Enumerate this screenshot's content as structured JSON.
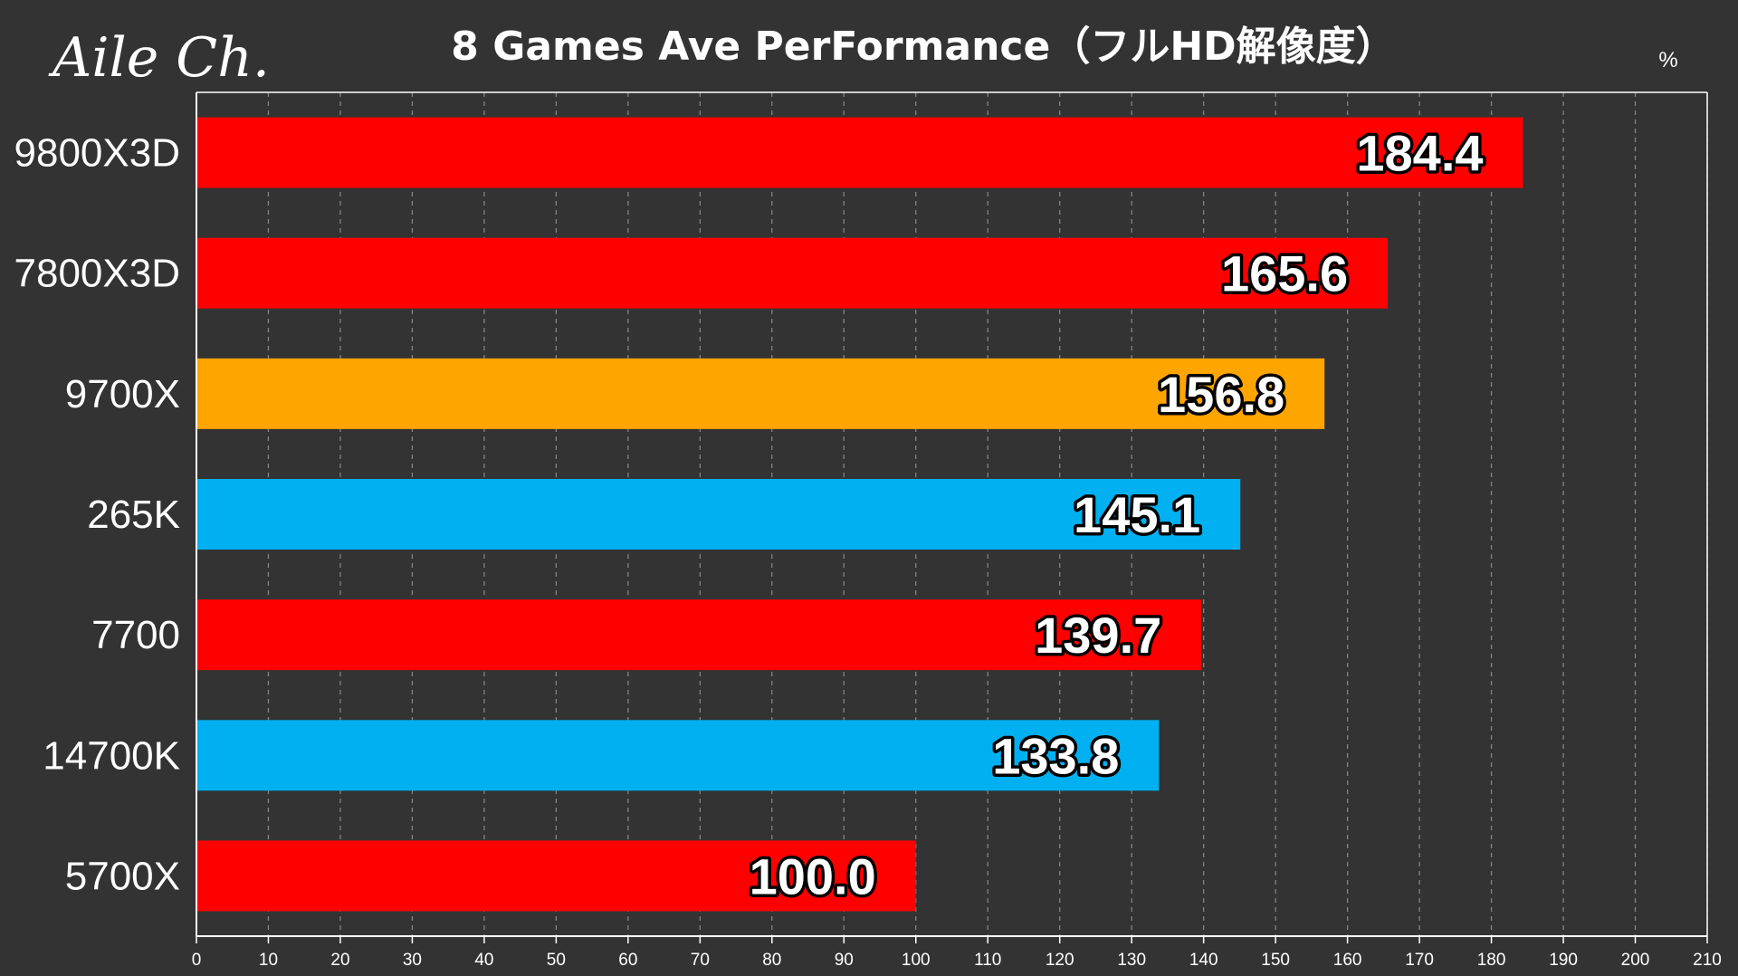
{
  "logo": "Aile Ch.",
  "chart_data": {
    "type": "bar",
    "orientation": "horizontal",
    "title": "8 Games Ave PerFormance（フルHD解像度）",
    "unit": "%",
    "categories": [
      "9800X3D",
      "7800X3D",
      "9700X",
      "265K",
      "7700",
      "14700K",
      "5700X"
    ],
    "values": [
      184.4,
      165.6,
      156.8,
      145.1,
      139.7,
      133.8,
      100.0
    ],
    "value_labels": [
      "184.4",
      "165.6",
      "156.8",
      "145.1",
      "139.7",
      "133.8",
      "100.0"
    ],
    "bar_colors": [
      "#ff0000",
      "#ff0000",
      "#ffa500",
      "#00b0f0",
      "#ff0000",
      "#00b0f0",
      "#ff0000"
    ],
    "xlim": [
      0,
      210
    ],
    "xticks": [
      0,
      10,
      20,
      30,
      40,
      50,
      60,
      70,
      80,
      90,
      100,
      110,
      120,
      130,
      140,
      150,
      160,
      170,
      180,
      190,
      200,
      210
    ],
    "grid": true,
    "legend": "none",
    "xlabel": "",
    "ylabel": ""
  },
  "colors": {
    "background": "#333333",
    "axis": "#ffffff",
    "grid": "#8a8a8a"
  }
}
